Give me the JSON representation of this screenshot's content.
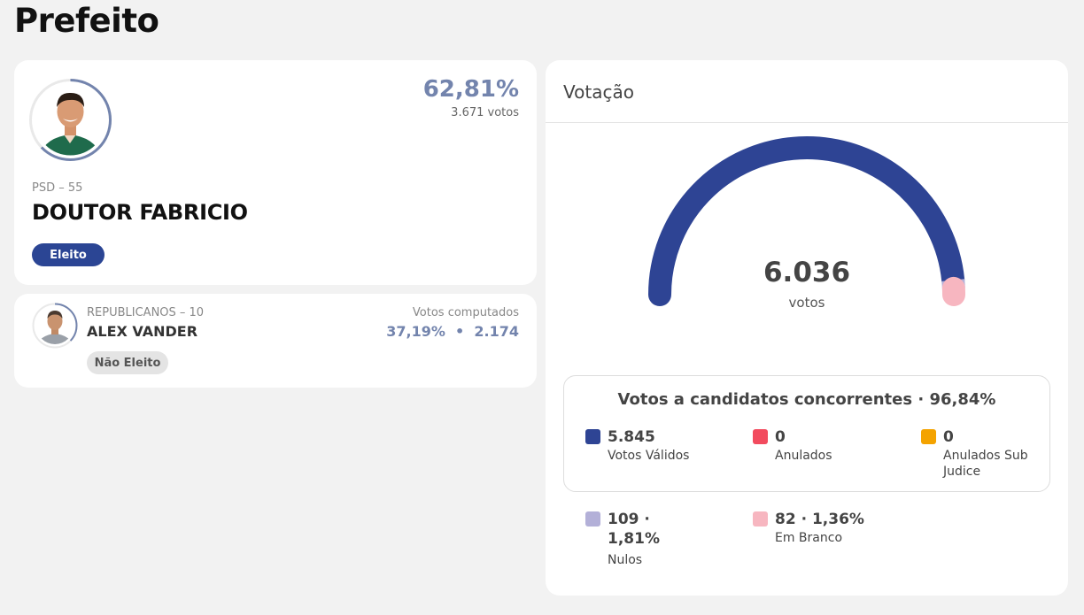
{
  "page": {
    "title": "Prefeito"
  },
  "winner": {
    "percent": "62,81%",
    "votes": "3.671 votos",
    "party": "PSD – 55",
    "name": "DOUTOR FABRICIO",
    "status": "Eleito",
    "share": 0.6281
  },
  "runner_up": {
    "party": "REPUBLICANOS – 10",
    "name": "ALEX VANDER",
    "votes_label": "Votos computados",
    "votes_value": "37,19%  •  2.174",
    "status": "Não Eleito",
    "share": 0.3719
  },
  "votacao": {
    "title": "Votação",
    "total": "6.036",
    "unit": "votos",
    "box_title": "Votos a candidatos concorrentes · 96,84%",
    "stats": {
      "validos": {
        "value": "5.845",
        "label": "Votos Válidos",
        "color": "#2e4494"
      },
      "anulados": {
        "value": "0",
        "label": "Anulados",
        "color": "#f24b5e"
      },
      "anulados_sub": {
        "value": "0",
        "label": "Anulados Sub Judice",
        "color": "#f4a300"
      },
      "nulos": {
        "value": "109 · 1,81%",
        "label": "Nulos",
        "color": "#b3b0d8"
      },
      "branco": {
        "value": "82 · 1,36%",
        "label": "Em Branco",
        "color": "#f7b6c0"
      }
    },
    "gauge": {
      "validos": 5845,
      "nulos": 109,
      "branco": 82,
      "total": 6036
    }
  },
  "colors": {
    "accent": "#2b4594",
    "percent": "#7384ad",
    "ring": "#7384ad"
  }
}
